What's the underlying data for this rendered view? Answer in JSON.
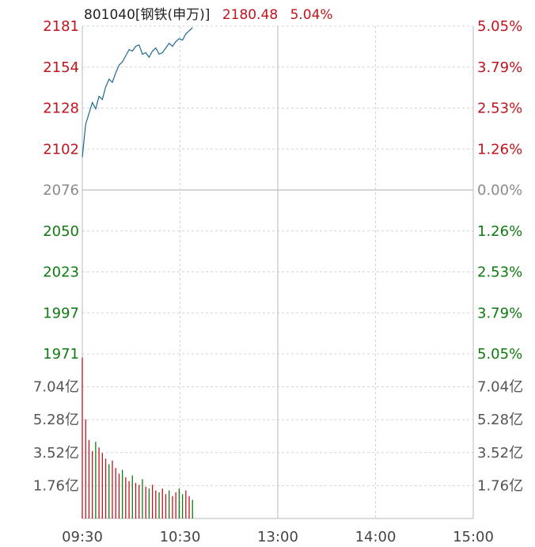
{
  "header": {
    "code_name": "801040[钢铁(申万)]",
    "price": "2180.48",
    "change": "5.04%"
  },
  "colors": {
    "up": "#c0141e",
    "down": "#0f7a0f",
    "neutral": "#8a8a8a",
    "line": "#1d6a8c",
    "grid": "#d4d4d4",
    "axis": "#b8b8b8",
    "text": "#333333"
  },
  "chart_data": [
    {
      "type": "line",
      "title": "801040[钢铁(申万)]",
      "price_ticks": [
        {
          "label": "2181",
          "pct": "5.05%",
          "dir": "up"
        },
        {
          "label": "2154",
          "pct": "3.79%",
          "dir": "up"
        },
        {
          "label": "2128",
          "pct": "2.53%",
          "dir": "up"
        },
        {
          "label": "2102",
          "pct": "1.26%",
          "dir": "up"
        },
        {
          "label": "2076",
          "pct": "0.00%",
          "dir": "flat"
        },
        {
          "label": "2050",
          "pct": "1.26%",
          "dir": "down"
        },
        {
          "label": "2023",
          "pct": "2.53%",
          "dir": "down"
        },
        {
          "label": "1997",
          "pct": "3.79%",
          "dir": "down"
        },
        {
          "label": "1971",
          "pct": "5.05%",
          "dir": "down"
        }
      ],
      "ylim": [
        1971,
        2181
      ],
      "time_labels": [
        "09:30",
        "10:30",
        "13:00",
        "14:00",
        "15:00"
      ],
      "total_minutes": 240,
      "series": [
        {
          "minutes": [
            0,
            1,
            2,
            3,
            4,
            5,
            6,
            7,
            8,
            9,
            10,
            11,
            12,
            13,
            14,
            15,
            16,
            17,
            18,
            19,
            20,
            21,
            22,
            23,
            24,
            25,
            26,
            27,
            28,
            29,
            30,
            31,
            32,
            33
          ],
          "values": [
            2097,
            2118,
            2125,
            2132,
            2128,
            2136,
            2134,
            2142,
            2147,
            2145,
            2151,
            2156,
            2158,
            2162,
            2166,
            2165,
            2168,
            2169,
            2163,
            2164,
            2161,
            2165,
            2167,
            2163,
            2164,
            2167,
            2170,
            2168,
            2171,
            2173,
            2172,
            2176,
            2178,
            2180
          ]
        }
      ]
    },
    {
      "type": "bar",
      "volume_ticks": [
        "7.04亿",
        "5.28亿",
        "3.52亿",
        "1.76亿"
      ],
      "ylim": [
        0,
        8.8
      ],
      "unit": "亿",
      "minutes": [
        0,
        1,
        2,
        3,
        4,
        5,
        6,
        7,
        8,
        9,
        10,
        11,
        12,
        13,
        14,
        15,
        16,
        17,
        18,
        19,
        20,
        21,
        22,
        23,
        24,
        25,
        26,
        27,
        28,
        29,
        30,
        31,
        32,
        33
      ],
      "values": [
        8.6,
        5.3,
        4.2,
        3.6,
        4.1,
        3.8,
        3.5,
        3.2,
        2.9,
        3.1,
        2.7,
        2.4,
        2.6,
        2.2,
        2.0,
        2.3,
        1.9,
        1.8,
        2.1,
        1.7,
        1.6,
        1.8,
        1.5,
        1.4,
        1.6,
        1.3,
        1.5,
        1.2,
        1.4,
        1.6,
        1.3,
        1.5,
        1.2,
        1.0
      ],
      "directions": [
        "up",
        "up",
        "up",
        "up",
        "down",
        "up",
        "up",
        "up",
        "down",
        "up",
        "up",
        "up",
        "down",
        "up",
        "up",
        "down",
        "up",
        "up",
        "down",
        "up",
        "down",
        "up",
        "up",
        "down",
        "up",
        "up",
        "down",
        "up",
        "up",
        "down",
        "down",
        "up",
        "up",
        "down"
      ]
    }
  ]
}
